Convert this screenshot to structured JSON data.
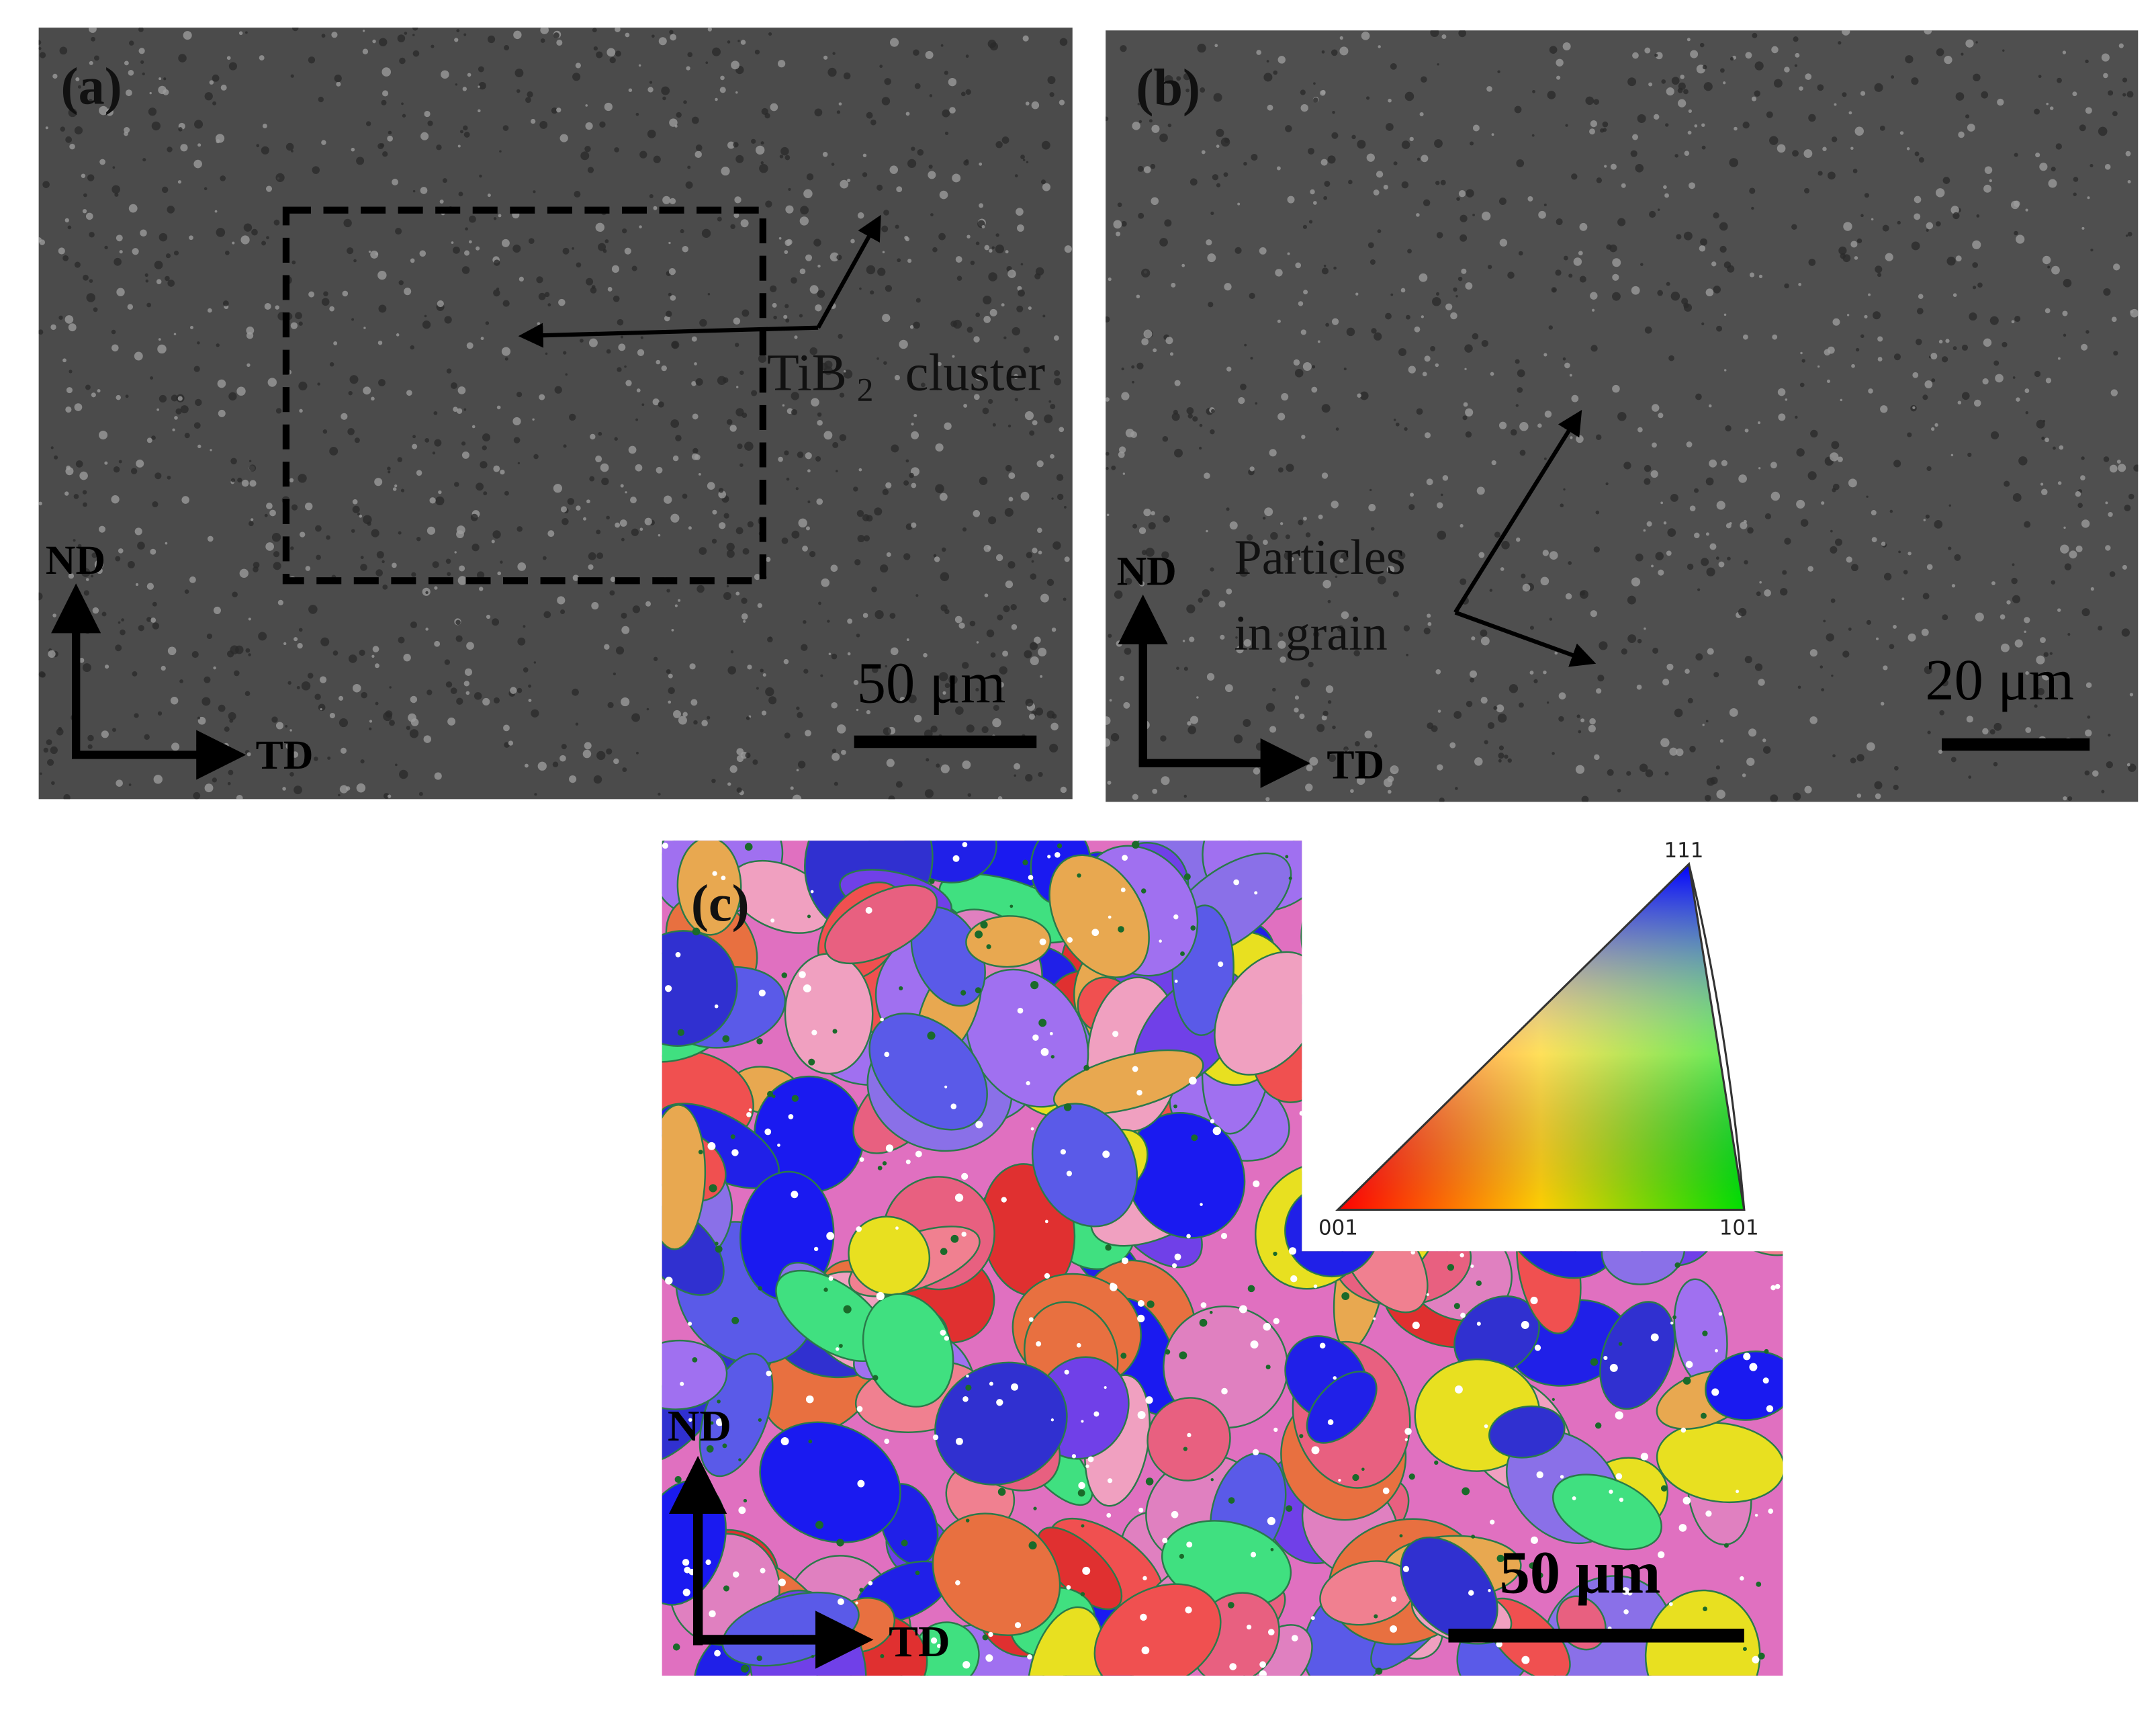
{
  "panels": [
    {
      "label": "(a)",
      "annotation": {
        "text": "TiB",
        "subscript": "2",
        "suffix": "cluster"
      },
      "axes": {
        "vertical": "ND",
        "horizontal": "TD"
      },
      "scale_bar": "50 μm"
    },
    {
      "label": "(b)",
      "annotation": {
        "lines": [
          "Particles",
          "in grain"
        ]
      },
      "axes": {
        "vertical": "ND",
        "horizontal": "TD"
      },
      "scale_bar": "20 μm"
    },
    {
      "label": "(c)",
      "legend": {
        "corners": [
          "111",
          "001",
          "101"
        ]
      },
      "axes": {
        "vertical": "ND",
        "horizontal": "TD"
      },
      "scale_bar": "50 μm"
    }
  ]
}
